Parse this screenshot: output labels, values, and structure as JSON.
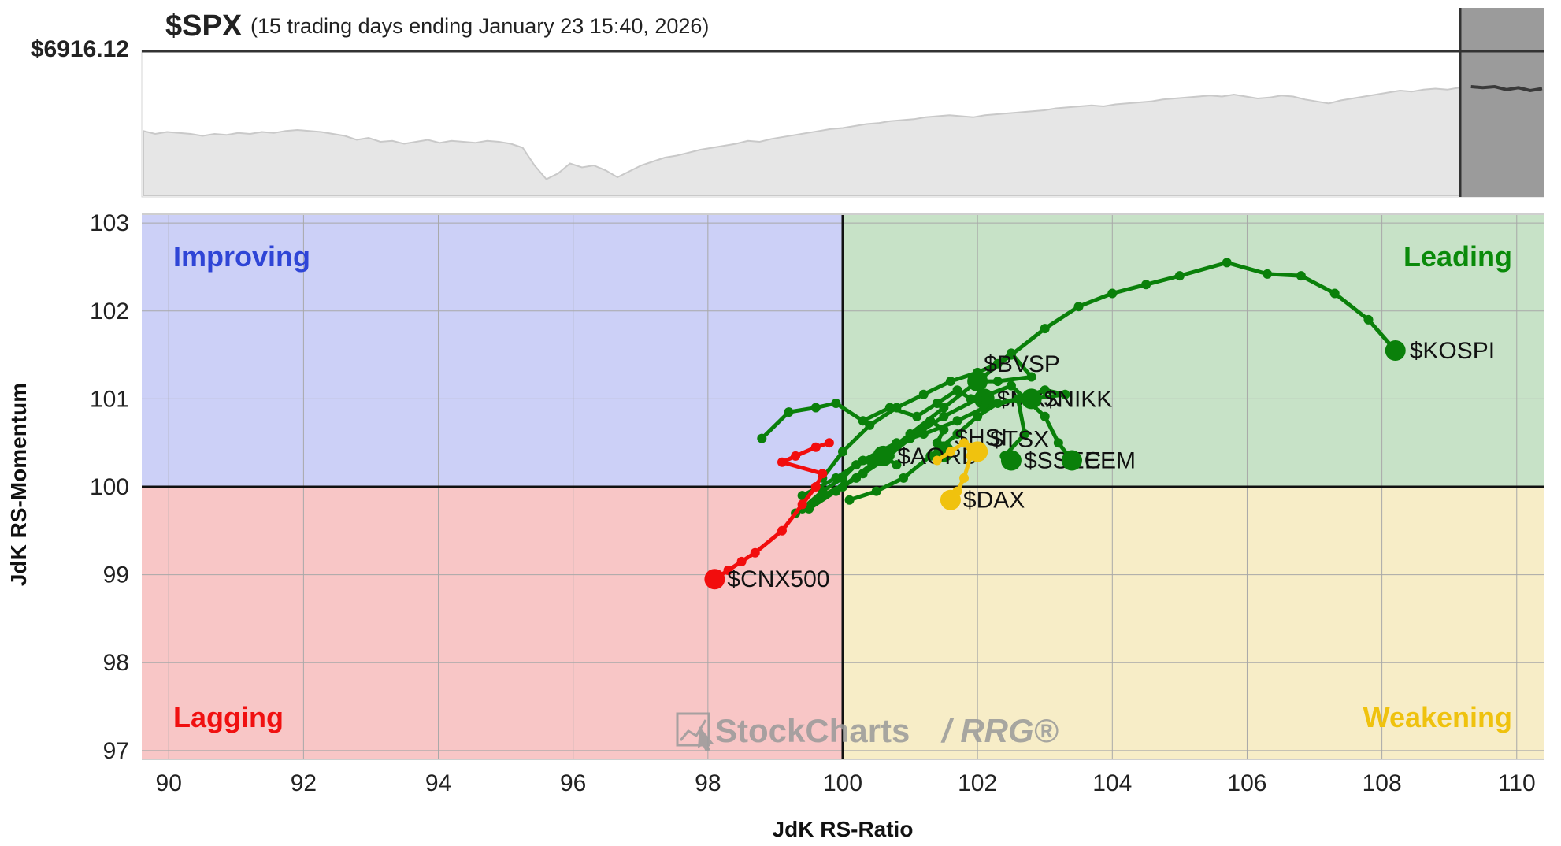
{
  "header": {
    "symbol": "$SPX",
    "period": "(15 trading days ending January 23 15:40, 2026)",
    "price_label": "$6916.12"
  },
  "watermark": {
    "brand": "StockCharts",
    "product": "/ RRG®"
  },
  "colors": {
    "improving_bg": "#ccd0f7",
    "leading_bg": "#c7e2c7",
    "lagging_bg": "#f8c6c6",
    "weakening_bg": "#f7edc7",
    "improving_text": "#2f45d6",
    "leading_text": "#0a8a0a",
    "lagging_text": "#f01010",
    "weakening_text": "#efc20e",
    "leading_series": "#0a800a",
    "lagging_series": "#f20d0d",
    "weakening_series": "#f0c20e"
  },
  "chart_data": {
    "type": "scatter",
    "title": "",
    "xlabel": "JdK RS-Ratio",
    "ylabel": "JdK RS-Momentum",
    "xlim": [
      89.6,
      110.4
    ],
    "ylim": [
      96.9,
      103.1
    ],
    "x_ticks": [
      90,
      92,
      94,
      96,
      98,
      100,
      102,
      104,
      106,
      108,
      110
    ],
    "y_ticks": [
      97,
      98,
      99,
      100,
      101,
      102,
      103
    ],
    "grid": true,
    "quadrants": {
      "improving": "Improving",
      "leading": "Leading",
      "lagging": "Lagging",
      "weakening": "Weakening"
    },
    "series": [
      {
        "name": "$KOSPI",
        "quadrant": "leading",
        "x": [
          100.0,
          100.5,
          101.0,
          101.5,
          102.0,
          102.5,
          103.0,
          103.5,
          104.0,
          104.5,
          105.0,
          105.7,
          106.3,
          106.8,
          107.3,
          107.8,
          108.2
        ],
        "y": [
          100.0,
          100.3,
          100.6,
          100.9,
          101.2,
          101.5,
          101.8,
          102.05,
          102.2,
          102.3,
          102.4,
          102.55,
          102.42,
          102.4,
          102.2,
          101.9,
          101.55
        ]
      },
      {
        "name": "$BVSP",
        "quadrant": "leading",
        "x": [
          99.7,
          100.0,
          100.4,
          100.8,
          101.2,
          101.6,
          102.0,
          102.3,
          102.5,
          102.8,
          102.3,
          102.0
        ],
        "y": [
          100.1,
          100.4,
          100.7,
          100.9,
          101.05,
          101.2,
          101.3,
          101.4,
          101.52,
          101.25,
          101.2,
          101.2
        ]
      },
      {
        "name": "$MXX",
        "quadrant": "leading",
        "x": [
          98.8,
          99.2,
          99.6,
          99.9,
          100.3,
          100.7,
          101.1,
          101.4,
          101.7,
          101.9,
          102.1
        ],
        "y": [
          100.55,
          100.85,
          100.9,
          100.95,
          100.75,
          100.9,
          100.8,
          100.95,
          101.1,
          101.0,
          101.0
        ]
      },
      {
        "name": "$NIKK",
        "quadrant": "leading",
        "x": [
          99.4,
          99.9,
          100.3,
          100.8,
          101.2,
          101.7,
          102.1,
          102.6,
          103.0,
          103.3,
          102.8
        ],
        "y": [
          99.9,
          100.1,
          100.3,
          100.5,
          100.6,
          100.75,
          100.9,
          101.0,
          101.1,
          101.05,
          101.0
        ]
      },
      {
        "name": "$SSEC",
        "quadrant": "leading",
        "x": [
          100.1,
          100.5,
          100.9,
          101.3,
          101.7,
          102.0,
          102.3,
          102.6,
          102.7,
          102.4,
          102.5
        ],
        "y": [
          99.85,
          99.95,
          100.1,
          100.35,
          100.6,
          100.8,
          100.95,
          101.0,
          100.6,
          100.35,
          100.3
        ]
      },
      {
        "name": "EEM",
        "quadrant": "leading",
        "x": [
          99.3,
          99.7,
          100.2,
          100.6,
          101.0,
          101.5,
          102.0,
          102.5,
          103.0,
          103.2,
          103.4
        ],
        "y": [
          99.7,
          99.9,
          100.1,
          100.3,
          100.55,
          100.8,
          101.0,
          101.15,
          100.8,
          100.5,
          100.3
        ]
      },
      {
        "name": "$HSI",
        "quadrant": "leading",
        "x": [
          99.5,
          99.9,
          100.3,
          100.7,
          101.0,
          101.3,
          101.5,
          101.4,
          101.5
        ],
        "y": [
          99.75,
          99.95,
          100.15,
          100.35,
          100.6,
          100.75,
          100.65,
          100.5,
          100.4
        ]
      },
      {
        "name": "$AORD",
        "quadrant": "leading",
        "x": [
          99.4,
          99.7,
          100.0,
          100.2,
          100.4,
          100.6,
          100.8,
          100.6
        ],
        "y": [
          99.75,
          99.95,
          100.1,
          100.25,
          100.3,
          100.35,
          100.25,
          100.35
        ]
      },
      {
        "name": "$CNX500",
        "quadrant": "lagging",
        "x": [
          99.8,
          99.6,
          99.3,
          99.1,
          99.7,
          99.6,
          99.4,
          99.1,
          98.7,
          98.5,
          98.3,
          98.1
        ],
        "y": [
          100.5,
          100.45,
          100.35,
          100.28,
          100.15,
          100.0,
          99.8,
          99.5,
          99.25,
          99.15,
          99.05,
          98.95
        ]
      },
      {
        "name": "$TSX",
        "quadrant": "weakening",
        "x": [
          101.4,
          101.6,
          101.8,
          101.9,
          102.0
        ],
        "y": [
          100.3,
          100.4,
          100.5,
          100.45,
          100.4
        ]
      },
      {
        "name": "$DAX",
        "quadrant": "weakening",
        "x": [
          101.9,
          101.8,
          101.7,
          101.6
        ],
        "y": [
          100.35,
          100.1,
          99.95,
          99.85
        ]
      }
    ]
  },
  "spx_trend": {
    "type": "area",
    "values": [
      0.55,
      0.52,
      0.54,
      0.53,
      0.52,
      0.5,
      0.52,
      0.51,
      0.53,
      0.52,
      0.54,
      0.53,
      0.55,
      0.56,
      0.55,
      0.54,
      0.52,
      0.5,
      0.46,
      0.48,
      0.44,
      0.45,
      0.42,
      0.44,
      0.46,
      0.43,
      0.45,
      0.44,
      0.43,
      0.45,
      0.44,
      0.42,
      0.38,
      0.2,
      0.06,
      0.12,
      0.22,
      0.18,
      0.2,
      0.15,
      0.08,
      0.14,
      0.2,
      0.24,
      0.28,
      0.3,
      0.33,
      0.36,
      0.38,
      0.4,
      0.42,
      0.45,
      0.44,
      0.47,
      0.49,
      0.51,
      0.53,
      0.55,
      0.57,
      0.58,
      0.6,
      0.62,
      0.63,
      0.65,
      0.66,
      0.67,
      0.69,
      0.7,
      0.71,
      0.7,
      0.69,
      0.71,
      0.72,
      0.73,
      0.74,
      0.75,
      0.76,
      0.78,
      0.79,
      0.8,
      0.81,
      0.8,
      0.82,
      0.83,
      0.84,
      0.85,
      0.87,
      0.88,
      0.89,
      0.9,
      0.91,
      0.9,
      0.92,
      0.9,
      0.88,
      0.89,
      0.91,
      0.9,
      0.87,
      0.85,
      0.83,
      0.86,
      0.88,
      0.9,
      0.92,
      0.94,
      0.96,
      0.95,
      0.97,
      0.98,
      0.97,
      0.99,
      1.0,
      0.99,
      1.0,
      0.97,
      0.99,
      0.96,
      0.98
    ]
  }
}
